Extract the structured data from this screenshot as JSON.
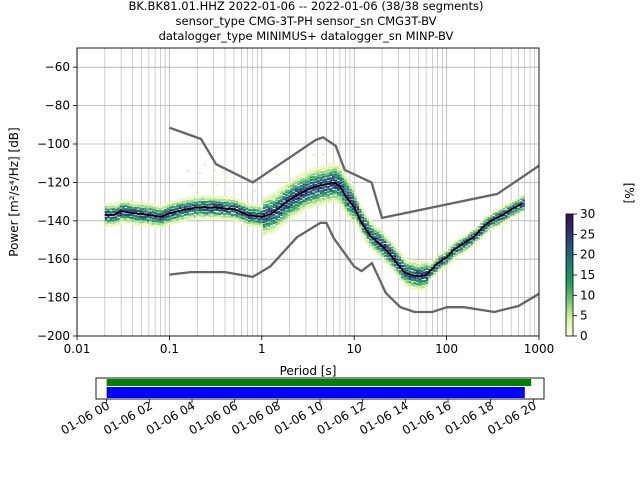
{
  "title_lines": [
    "BK.BK81.01.HHZ   2022-01-06 -- 2022-01-06  (38/38 segments)",
    "sensor_type CMG-3T-PH sensor_sn CMG3T-BV",
    "datalogger_type MINIMUS+ datalogger_sn MINP-BV"
  ],
  "colors": {
    "nlnm_nhnm": "#666666",
    "mean": "#000000",
    "coverage_top": "#008000",
    "coverage_bottom": "#0000ff",
    "grid": "#b0b0b0"
  },
  "chart_data": [
    {
      "type": "heatmap",
      "xlabel": "Period [s]",
      "ylabel": "Power [m²/s⁴/Hz] [dB]",
      "x_scale": "log",
      "xlim": [
        0.01,
        1000
      ],
      "ylim": [
        -200,
        -50
      ],
      "xticks": [
        {
          "value": 0.01,
          "label": "0.01"
        },
        {
          "value": 0.1,
          "label": "0.1"
        },
        {
          "value": 1,
          "label": "1"
        },
        {
          "value": 10,
          "label": "10"
        },
        {
          "value": 100,
          "label": "100"
        },
        {
          "value": 1000,
          "label": "1000"
        }
      ],
      "yticks": [
        {
          "value": -60,
          "label": "−60"
        },
        {
          "value": -80,
          "label": "−80"
        },
        {
          "value": -100,
          "label": "−100"
        },
        {
          "value": -120,
          "label": "−120"
        },
        {
          "value": -140,
          "label": "−140"
        },
        {
          "value": -160,
          "label": "−160"
        },
        {
          "value": -180,
          "label": "−180"
        },
        {
          "value": -200,
          "label": "−200"
        }
      ],
      "grid": true,
      "colorbar": {
        "label": "[%]",
        "range": [
          0,
          30
        ],
        "ticks": [
          "0",
          "5",
          "10",
          "15",
          "20",
          "25",
          "30"
        ],
        "colormap": [
          "#ffffe0",
          "#d9f0a3",
          "#78c679",
          "#21a05a",
          "#1d7f6e",
          "#225a80",
          "#2c2f6e",
          "#3b0f4f"
        ]
      },
      "series": [
        {
          "name": "NHNM",
          "x": [
            0.1,
            0.22,
            0.32,
            0.8,
            3.8,
            4.6,
            6.3,
            7.9,
            15.4,
            20,
            354.8,
            1000
          ],
          "y": [
            -91.5,
            -97.4,
            -110.5,
            -120,
            -98,
            -96.5,
            -101,
            -113.5,
            -120,
            -138.5,
            -126,
            -111.3
          ]
        },
        {
          "name": "NLNM",
          "x": [
            0.1,
            0.17,
            0.4,
            0.8,
            1.24,
            2.4,
            4.3,
            5,
            6,
            10,
            12,
            15.6,
            21.9,
            31.6,
            45,
            70,
            101,
            154,
            328,
            600,
            1000
          ],
          "y": [
            -168,
            -166.7,
            -166.7,
            -169.2,
            -163.7,
            -148.6,
            -141.1,
            -141.1,
            -149,
            -163.8,
            -166.2,
            -162.1,
            -177.5,
            -185,
            -187.5,
            -187.5,
            -185,
            -185,
            -187.5,
            -184.4,
            -178
          ]
        },
        {
          "name": "mean",
          "x": [
            0.02,
            0.025,
            0.03,
            0.04,
            0.06,
            0.08,
            0.1,
            0.15,
            0.2,
            0.3,
            0.5,
            0.7,
            1,
            1.3,
            2,
            3,
            4,
            5,
            6,
            7,
            8,
            10,
            12,
            15,
            20,
            25,
            30,
            35,
            40,
            50,
            60,
            70,
            80,
            100,
            120,
            150,
            200,
            250,
            300,
            400,
            500,
            600,
            650
          ],
          "y": [
            -137,
            -137,
            -135,
            -136,
            -137,
            -138,
            -136,
            -134,
            -133,
            -133,
            -134,
            -137,
            -138,
            -136,
            -129,
            -124,
            -122,
            -121,
            -120,
            -122,
            -127,
            -133,
            -141,
            -148,
            -153,
            -158,
            -163,
            -167,
            -168,
            -169,
            -168,
            -165,
            -162,
            -159,
            -155,
            -152,
            -148,
            -143,
            -140,
            -137,
            -134,
            -132,
            -131
          ]
        }
      ],
      "coverage": {
        "axis_ticks": [
          "01-06 00",
          "01-06 02",
          "01-06 04",
          "01-06 06",
          "01-06 08",
          "01-06 10",
          "01-06 12",
          "01-06 14",
          "01-06 16",
          "01-06 18",
          "01-06 20"
        ],
        "range_hours": [
          -0.5,
          20.5
        ],
        "data_hours": [
          0,
          19.6
        ]
      }
    }
  ]
}
